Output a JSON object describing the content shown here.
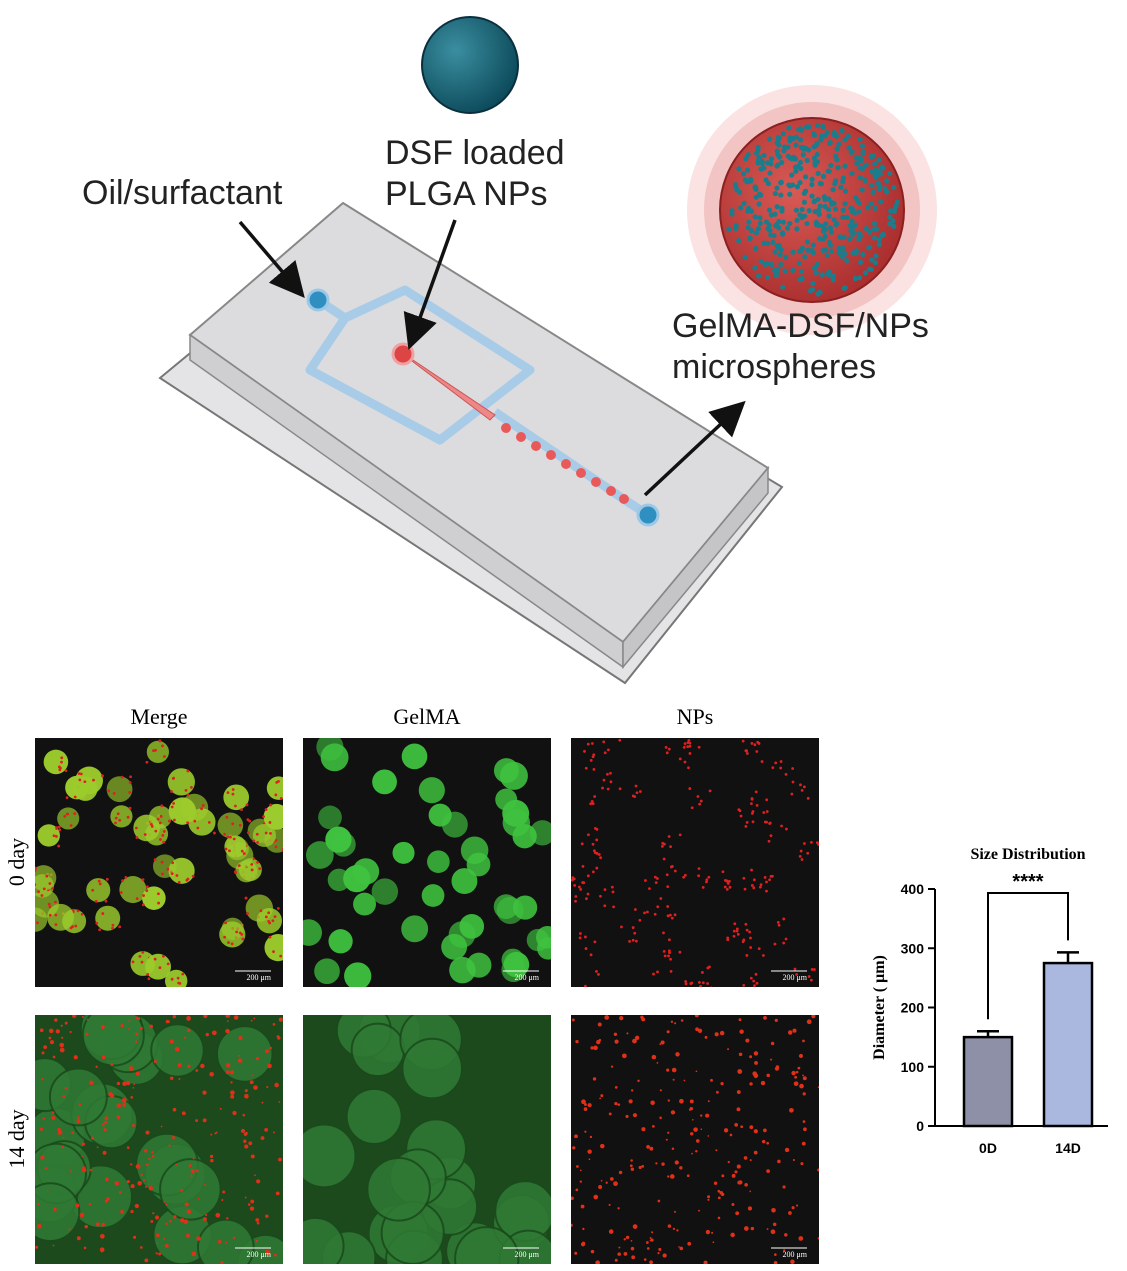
{
  "diagram": {
    "inlet_oil": "Oil/surfactant",
    "inlet_nps": [
      "DSF loaded",
      "PLGA NPs"
    ],
    "outlet": [
      "GelMA-DSF/NPs",
      "microspheres"
    ]
  },
  "microscopy": {
    "columns": [
      "Merge",
      "GelMA",
      "NPs"
    ],
    "rows": [
      "0 day",
      "14 day"
    ],
    "scale_bar": "200 μm"
  },
  "chart_data": {
    "type": "bar",
    "title": "Size Distribution",
    "y_label": "Diameter ( μm)",
    "categories": [
      "0D",
      "14D"
    ],
    "values": [
      150,
      275
    ],
    "errors": [
      10,
      18
    ],
    "colors": [
      "#8e90a8",
      "#aab8e0"
    ],
    "ylim": [
      0,
      400
    ],
    "yticks": [
      0,
      100,
      200,
      300,
      400
    ],
    "annotation": "****"
  }
}
